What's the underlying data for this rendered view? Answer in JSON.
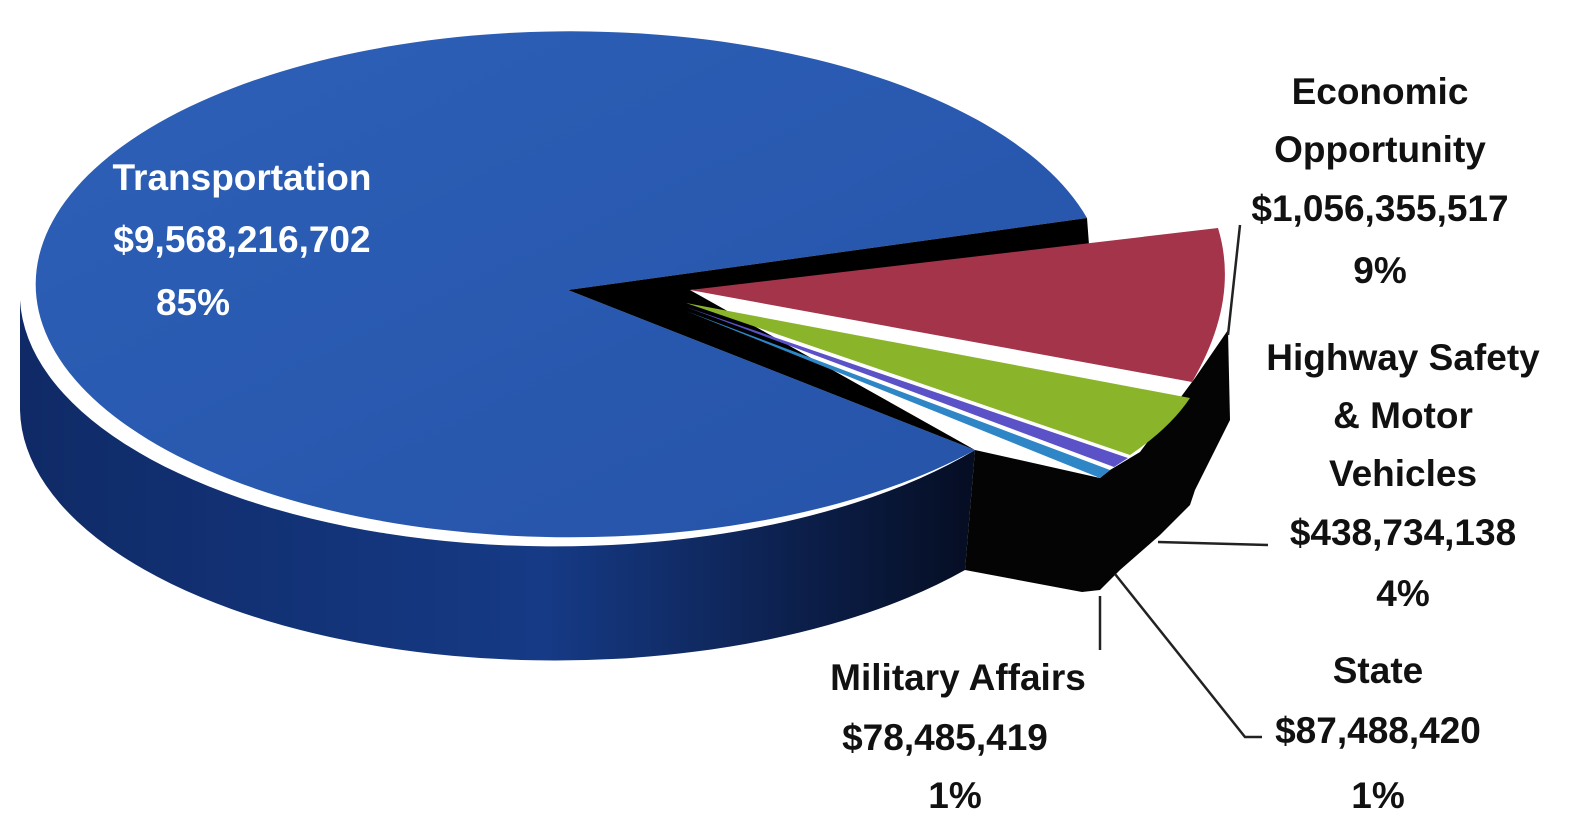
{
  "chart_data": {
    "type": "pie",
    "style": "3d-exploded",
    "slices": [
      {
        "name": "Transportation",
        "value": 9568216702,
        "value_label": "$9,568,216,702",
        "percent_label": "85%",
        "color": "#2b5cb4"
      },
      {
        "name": "Economic Opportunity",
        "value": 1056355517,
        "value_label": "$1,056,355,517",
        "percent_label": "9%",
        "color": "#a3344a"
      },
      {
        "name": "Highway Safety & Motor Vehicles",
        "value": 438734138,
        "value_label": "$438,734,138",
        "percent_label": "4%",
        "color": "#8ab52a"
      },
      {
        "name": "State",
        "value": 87488420,
        "value_label": "$87,488,420",
        "percent_label": "1%",
        "color": "#5b52c8"
      },
      {
        "name": "Military Affairs",
        "value": 78485419,
        "value_label": "$78,485,419",
        "percent_label": "1%",
        "color": "#2f86c6"
      }
    ]
  },
  "labels": {
    "transportation": {
      "name": "Transportation",
      "value": "$9,568,216,702",
      "percent": "85%"
    },
    "economic": {
      "line1": "Economic",
      "line2": "Opportunity",
      "value": "$1,056,355,517",
      "percent": "9%"
    },
    "highway": {
      "line1": "Highway Safety",
      "line2": "& Motor",
      "line3": "Vehicles",
      "value": "$438,734,138",
      "percent": "4%"
    },
    "state": {
      "name": "State",
      "value": "$87,488,420",
      "percent": "1%"
    },
    "military": {
      "name": "Military Affairs",
      "value": "$78,485,419",
      "percent": "1%"
    }
  }
}
